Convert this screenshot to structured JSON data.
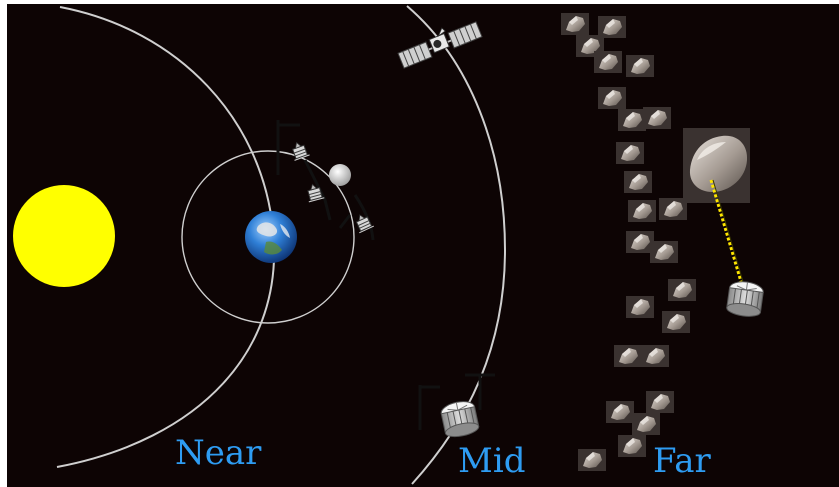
{
  "background_color": "#0d0404",
  "frame_color": "#ffffff",
  "label_color": "#2e9cf2",
  "orbit_color": "#cfcfcf",
  "sun_color": "#ffff00",
  "moon_color": "#d8d8d8",
  "tether_color": "#ffe600",
  "labels": {
    "near": "Near",
    "mid": "Mid",
    "far": "Far"
  },
  "icons": {
    "sun": "sun-icon",
    "earth": "earth-icon",
    "moon": "moon-icon",
    "satellite": "satellite-icon",
    "spacecraft": "spacecraft-icon",
    "asteroid": "asteroid-icon"
  }
}
